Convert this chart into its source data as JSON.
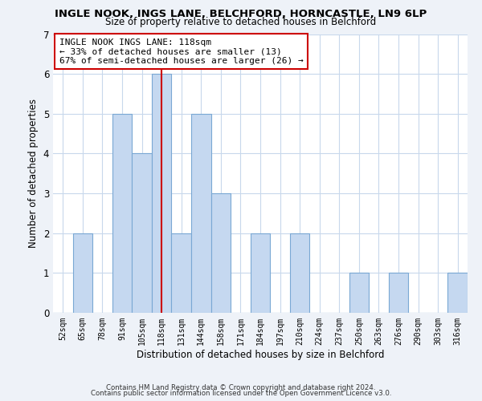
{
  "title": "INGLE NOOK, INGS LANE, BELCHFORD, HORNCASTLE, LN9 6LP",
  "subtitle": "Size of property relative to detached houses in Belchford",
  "xlabel": "Distribution of detached houses by size in Belchford",
  "ylabel": "Number of detached properties",
  "categories": [
    "52sqm",
    "65sqm",
    "78sqm",
    "91sqm",
    "105sqm",
    "118sqm",
    "131sqm",
    "144sqm",
    "158sqm",
    "171sqm",
    "184sqm",
    "197sqm",
    "210sqm",
    "224sqm",
    "237sqm",
    "250sqm",
    "263sqm",
    "276sqm",
    "290sqm",
    "303sqm",
    "316sqm"
  ],
  "values": [
    0,
    2,
    0,
    5,
    4,
    6,
    2,
    5,
    3,
    0,
    2,
    0,
    2,
    0,
    0,
    1,
    0,
    1,
    0,
    0,
    1
  ],
  "bar_color": "#c5d8f0",
  "bar_edge_color": "#7aa8d4",
  "highlight_index": 5,
  "highlight_line_color": "#cc0000",
  "highlight_box_color": "#cc0000",
  "annotation_line1": "INGLE NOOK INGS LANE: 118sqm",
  "annotation_line2": "← 33% of detached houses are smaller (13)",
  "annotation_line3": "67% of semi-detached houses are larger (26) →",
  "ylim": [
    0,
    7
  ],
  "yticks": [
    0,
    1,
    2,
    3,
    4,
    5,
    6,
    7
  ],
  "footnote_line1": "Contains HM Land Registry data © Crown copyright and database right 2024.",
  "footnote_line2": "Contains public sector information licensed under the Open Government Licence v3.0.",
  "background_color": "#eef2f8",
  "plot_background": "#ffffff",
  "grid_color": "#c8d8ec"
}
